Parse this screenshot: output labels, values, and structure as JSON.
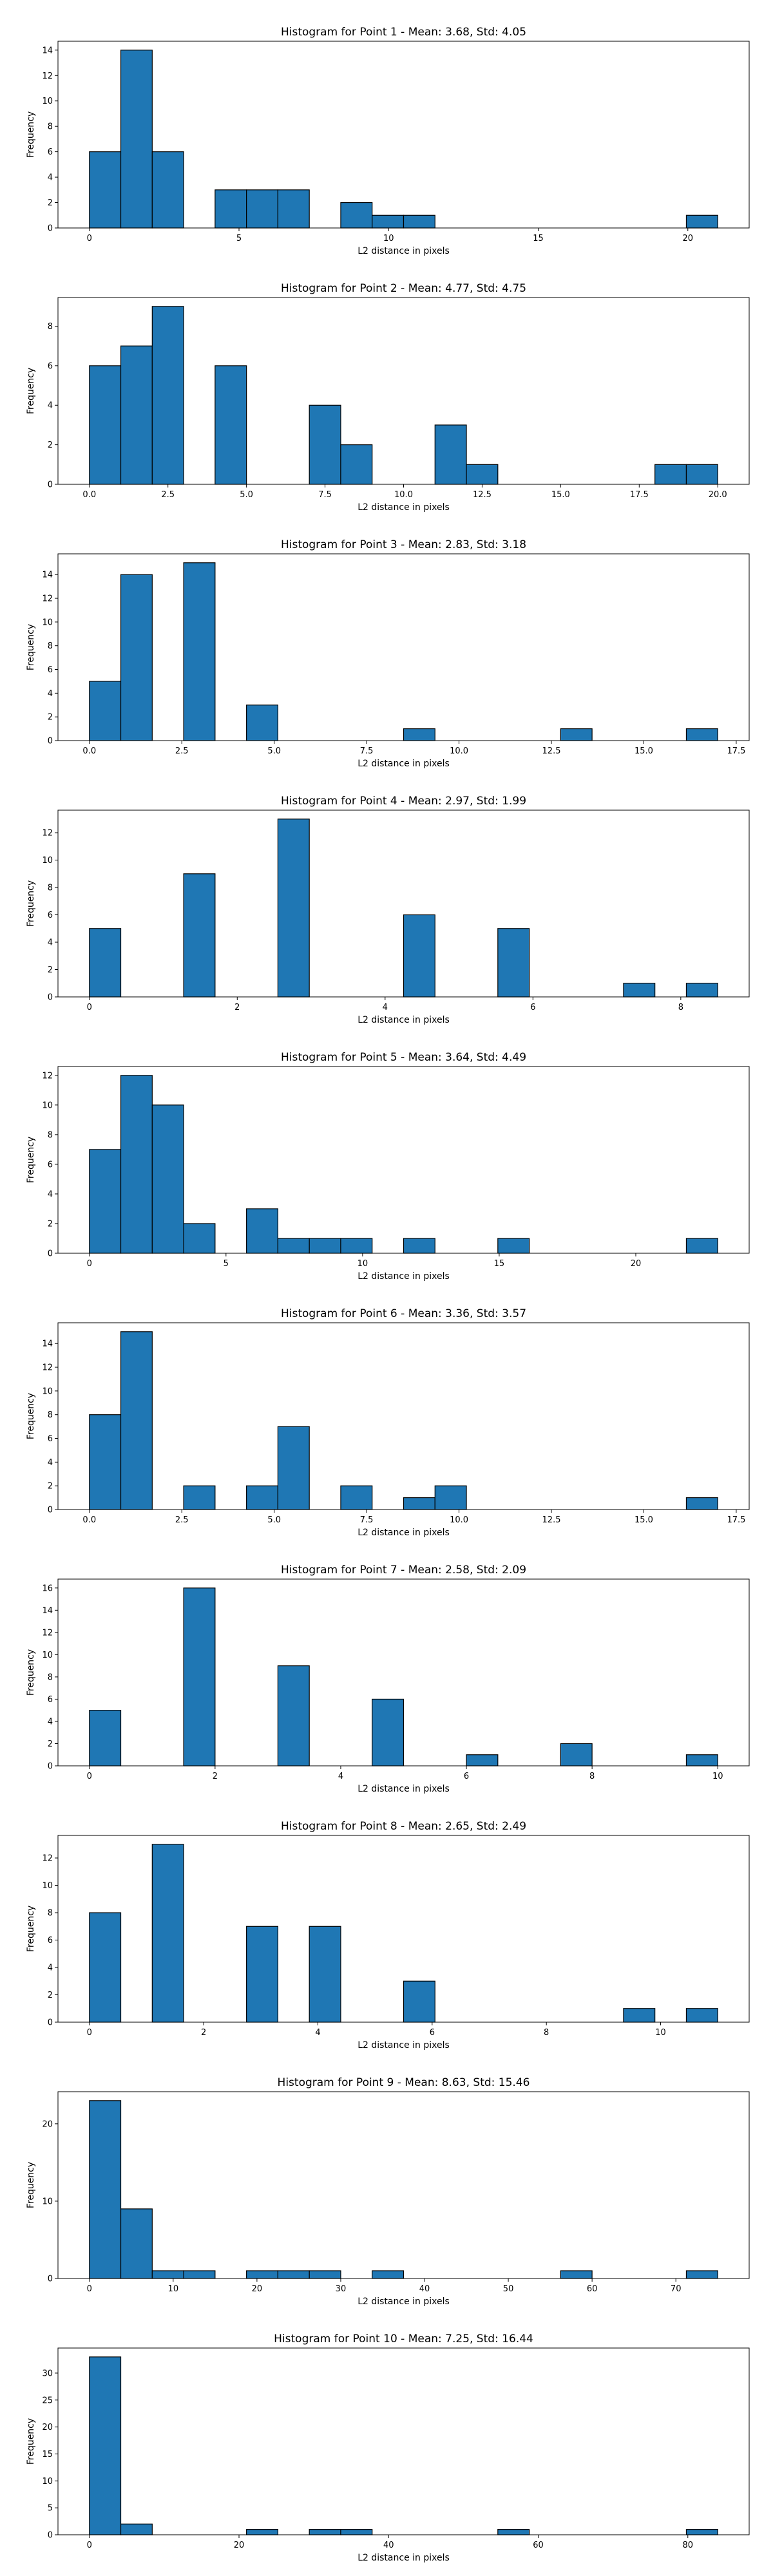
{
  "chart_data": [
    {
      "type": "bar",
      "title": "Histogram for Point 1 - Mean: 3.68, Std: 4.05",
      "xlabel": "L2 distance in pixels",
      "ylabel": "Frequency",
      "xlim": [
        -1.05,
        22.05
      ],
      "ylim": [
        0,
        14.7
      ],
      "xticks": [
        0,
        5,
        10,
        15,
        20
      ],
      "yticks": [
        0,
        2,
        4,
        6,
        8,
        10,
        12,
        14
      ],
      "bin_edges": [
        0.0,
        1.05,
        2.1,
        3.15,
        4.2,
        5.25,
        6.3,
        7.35,
        8.4,
        9.45,
        10.5,
        11.55,
        12.6,
        13.65,
        14.7,
        15.75,
        16.8,
        17.85,
        18.9,
        19.95,
        21.0
      ],
      "counts": [
        6,
        14,
        6,
        0,
        3,
        3,
        3,
        0,
        2,
        1,
        1,
        0,
        0,
        0,
        0,
        0,
        0,
        0,
        0,
        1
      ]
    },
    {
      "type": "bar",
      "title": "Histogram for Point 2 - Mean: 4.77, Std: 4.75",
      "xlabel": "L2 distance in pixels",
      "ylabel": "Frequency",
      "xlim": [
        -1.0,
        21.0
      ],
      "ylim": [
        0,
        9.45
      ],
      "xticks": [
        0.0,
        2.5,
        5.0,
        7.5,
        10.0,
        12.5,
        15.0,
        17.5,
        20.0
      ],
      "yticks": [
        0,
        2,
        4,
        6,
        8
      ],
      "bin_edges": [
        0.0,
        1.0,
        2.0,
        3.0,
        4.0,
        5.0,
        6.0,
        7.0,
        8.0,
        9.0,
        10.0,
        11.0,
        12.0,
        13.0,
        14.0,
        15.0,
        16.0,
        17.0,
        18.0,
        19.0,
        20.0
      ],
      "counts": [
        6,
        7,
        9,
        0,
        6,
        0,
        0,
        4,
        2,
        0,
        0,
        3,
        1,
        0,
        0,
        0,
        0,
        0,
        1,
        1
      ]
    },
    {
      "type": "bar",
      "title": "Histogram for Point 3 - Mean: 2.83, Std: 3.18",
      "xlabel": "L2 distance in pixels",
      "ylabel": "Frequency",
      "xlim": [
        -0.85,
        17.85
      ],
      "ylim": [
        0,
        15.75
      ],
      "xticks": [
        0.0,
        2.5,
        5.0,
        7.5,
        10.0,
        12.5,
        15.0,
        17.5
      ],
      "yticks": [
        0,
        2,
        4,
        6,
        8,
        10,
        12,
        14
      ],
      "bin_edges": [
        0.0,
        0.85,
        1.7,
        2.55,
        3.4,
        4.25,
        5.1,
        5.95,
        6.8,
        7.65,
        8.5,
        9.35,
        10.2,
        11.05,
        11.9,
        12.75,
        13.6,
        14.45,
        15.3,
        16.15,
        17.0
      ],
      "counts": [
        5,
        14,
        0,
        15,
        0,
        3,
        0,
        0,
        0,
        0,
        1,
        0,
        0,
        0,
        0,
        1,
        0,
        0,
        0,
        1
      ]
    },
    {
      "type": "bar",
      "title": "Histogram for Point 4 - Mean: 2.97, Std: 1.99",
      "xlabel": "L2 distance in pixels",
      "ylabel": "Frequency",
      "xlim": [
        -0.425,
        8.925
      ],
      "ylim": [
        0,
        13.65
      ],
      "xticks": [
        0,
        2,
        4,
        6,
        8
      ],
      "yticks": [
        0,
        2,
        4,
        6,
        8,
        10,
        12
      ],
      "bin_edges": [
        0.0,
        0.425,
        0.85,
        1.275,
        1.7,
        2.125,
        2.55,
        2.975,
        3.4,
        3.825,
        4.25,
        4.675,
        5.1,
        5.525,
        5.95,
        6.375,
        6.8,
        7.225,
        7.65,
        8.075,
        8.5
      ],
      "counts": [
        5,
        0,
        0,
        9,
        0,
        0,
        13,
        0,
        0,
        0,
        6,
        0,
        0,
        5,
        0,
        0,
        0,
        1,
        0,
        1
      ]
    },
    {
      "type": "bar",
      "title": "Histogram for Point 5 - Mean: 3.64, Std: 4.49",
      "xlabel": "L2 distance in pixels",
      "ylabel": "Frequency",
      "xlim": [
        -1.15,
        24.15
      ],
      "ylim": [
        0,
        12.6
      ],
      "xticks": [
        0,
        5,
        10,
        15,
        20
      ],
      "yticks": [
        0,
        2,
        4,
        6,
        8,
        10,
        12
      ],
      "bin_edges": [
        0.0,
        1.15,
        2.3,
        3.45,
        4.6,
        5.75,
        6.9,
        8.05,
        9.2,
        10.35,
        11.5,
        12.65,
        13.8,
        14.95,
        16.1,
        17.25,
        18.4,
        19.55,
        20.7,
        21.85,
        23.0
      ],
      "counts": [
        7,
        12,
        10,
        2,
        0,
        3,
        1,
        1,
        1,
        0,
        1,
        0,
        0,
        1,
        0,
        0,
        0,
        0,
        0,
        1
      ]
    },
    {
      "type": "bar",
      "title": "Histogram for Point 6 - Mean: 3.36, Std: 3.57",
      "xlabel": "L2 distance in pixels",
      "ylabel": "Frequency",
      "xlim": [
        -0.85,
        17.85
      ],
      "ylim": [
        0,
        15.75
      ],
      "xticks": [
        0.0,
        2.5,
        5.0,
        7.5,
        10.0,
        12.5,
        15.0,
        17.5
      ],
      "yticks": [
        0,
        2,
        4,
        6,
        8,
        10,
        12,
        14
      ],
      "bin_edges": [
        0.0,
        0.85,
        1.7,
        2.55,
        3.4,
        4.25,
        5.1,
        5.95,
        6.8,
        7.65,
        8.5,
        9.35,
        10.2,
        11.05,
        11.9,
        12.75,
        13.6,
        14.45,
        15.3,
        16.15,
        17.0
      ],
      "counts": [
        8,
        15,
        0,
        2,
        0,
        2,
        7,
        0,
        2,
        0,
        1,
        2,
        0,
        0,
        0,
        0,
        0,
        0,
        0,
        1
      ]
    },
    {
      "type": "bar",
      "title": "Histogram for Point 7 - Mean: 2.58, Std: 2.09",
      "xlabel": "L2 distance in pixels",
      "ylabel": "Frequency",
      "xlim": [
        -0.5,
        10.5
      ],
      "ylim": [
        0,
        16.8
      ],
      "xticks": [
        0,
        2,
        4,
        6,
        8,
        10
      ],
      "yticks": [
        0,
        2,
        4,
        6,
        8,
        10,
        12,
        14,
        16
      ],
      "bin_edges": [
        0.0,
        0.5,
        1.0,
        1.5,
        2.0,
        2.5,
        3.0,
        3.5,
        4.0,
        4.5,
        5.0,
        5.5,
        6.0,
        6.5,
        7.0,
        7.5,
        8.0,
        8.5,
        9.0,
        9.5,
        10.0
      ],
      "counts": [
        5,
        0,
        0,
        16,
        0,
        0,
        9,
        0,
        0,
        6,
        0,
        0,
        1,
        0,
        0,
        2,
        0,
        0,
        0,
        1
      ]
    },
    {
      "type": "bar",
      "title": "Histogram for Point 8 - Mean: 2.65, Std: 2.49",
      "xlabel": "L2 distance in pixels",
      "ylabel": "Frequency",
      "xlim": [
        -0.55,
        11.55
      ],
      "ylim": [
        0,
        13.65
      ],
      "xticks": [
        0,
        2,
        4,
        6,
        8,
        10
      ],
      "yticks": [
        0,
        2,
        4,
        6,
        8,
        10,
        12
      ],
      "bin_edges": [
        0.0,
        0.55,
        1.1,
        1.65,
        2.2,
        2.75,
        3.3,
        3.85,
        4.4,
        4.95,
        5.5,
        6.05,
        6.6,
        7.15,
        7.7,
        8.25,
        8.8,
        9.35,
        9.9,
        10.45,
        11.0
      ],
      "counts": [
        8,
        0,
        13,
        0,
        0,
        7,
        0,
        7,
        0,
        0,
        3,
        0,
        0,
        0,
        0,
        0,
        0,
        1,
        0,
        1
      ]
    },
    {
      "type": "bar",
      "title": "Histogram for Point 9 - Mean: 8.63, Std: 15.46",
      "xlabel": "L2 distance in pixels",
      "ylabel": "Frequency",
      "xlim": [
        -3.75,
        78.75
      ],
      "ylim": [
        0,
        24.15
      ],
      "xticks": [
        0,
        10,
        20,
        30,
        40,
        50,
        60,
        70
      ],
      "yticks": [
        0,
        10,
        20
      ],
      "bin_edges": [
        0.0,
        3.75,
        7.5,
        11.25,
        15.0,
        18.75,
        22.5,
        26.25,
        30.0,
        33.75,
        37.5,
        41.25,
        45.0,
        48.75,
        52.5,
        56.25,
        60.0,
        63.75,
        67.5,
        71.25,
        75.0
      ],
      "counts": [
        23,
        9,
        1,
        1,
        0,
        1,
        1,
        1,
        0,
        1,
        0,
        0,
        0,
        0,
        0,
        1,
        0,
        0,
        0,
        1
      ]
    },
    {
      "type": "bar",
      "title": "Histogram for Point 10 - Mean: 7.25, Std: 16.44",
      "xlabel": "L2 distance in pixels",
      "ylabel": "Frequency",
      "xlim": [
        -4.2,
        88.2
      ],
      "ylim": [
        0,
        34.65
      ],
      "xticks": [
        0,
        20,
        40,
        60,
        80
      ],
      "yticks": [
        0,
        5,
        10,
        15,
        20,
        25,
        30
      ],
      "bin_edges": [
        0.0,
        4.2,
        8.4,
        12.6,
        16.8,
        21.0,
        25.2,
        29.4,
        33.6,
        37.8,
        42.0,
        46.2,
        50.4,
        54.6,
        58.8,
        63.0,
        67.2,
        71.4,
        75.6,
        79.8,
        84.0
      ],
      "counts": [
        33,
        2,
        0,
        0,
        0,
        1,
        0,
        1,
        1,
        0,
        0,
        0,
        0,
        1,
        0,
        0,
        0,
        0,
        0,
        1
      ]
    }
  ]
}
